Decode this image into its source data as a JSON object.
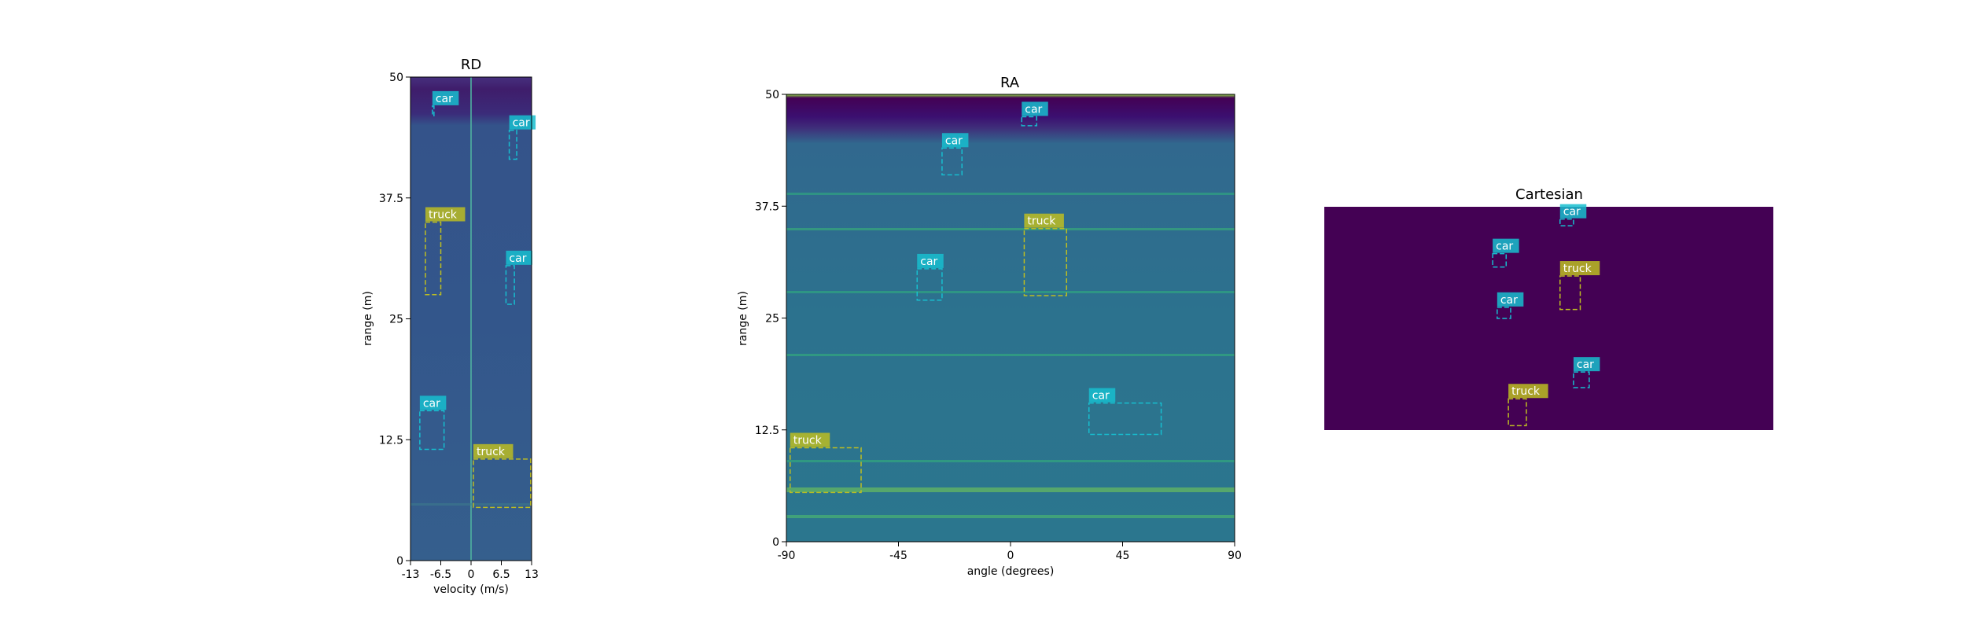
{
  "colors": {
    "car": "#17becf",
    "truck": "#bcbd22",
    "heat_low": "#440154",
    "heat_mid": "#31688e",
    "heat_high": "#b5de2b"
  },
  "chart_data": [
    {
      "type": "heatmap",
      "title": "RD",
      "xlabel": "velocity (m/s)",
      "ylabel": "range (m)",
      "xlim": [
        -13,
        13
      ],
      "ylim": [
        0,
        50
      ],
      "xticks": [
        "-13",
        "-6.5",
        "0",
        "6.5",
        "13"
      ],
      "xtick_values": [
        -13,
        -6.5,
        0,
        6.5,
        13
      ],
      "yticks": [
        "0",
        "12.5",
        "25",
        "37.5",
        "50"
      ],
      "ytick_values": [
        0,
        12.5,
        25,
        37.5,
        50
      ],
      "detections": [
        {
          "label": "car",
          "x": [
            -8.3,
            -8.0
          ],
          "y": [
            46.0,
            47.0
          ]
        },
        {
          "label": "car",
          "x": [
            8.2,
            9.8
          ],
          "y": [
            41.5,
            44.5
          ]
        },
        {
          "label": "truck",
          "x": [
            -9.8,
            -6.5
          ],
          "y": [
            27.5,
            35.0
          ]
        },
        {
          "label": "car",
          "x": [
            7.5,
            9.3
          ],
          "y": [
            26.5,
            30.5
          ]
        },
        {
          "label": "car",
          "x": [
            -11.0,
            -5.8
          ],
          "y": [
            11.5,
            15.5
          ]
        },
        {
          "label": "truck",
          "x": [
            0.5,
            12.8
          ],
          "y": [
            5.5,
            10.5
          ]
        }
      ]
    },
    {
      "type": "heatmap",
      "title": "RA",
      "xlabel": "angle (degrees)",
      "ylabel": "range (m)",
      "xlim": [
        -90,
        90
      ],
      "ylim": [
        0,
        50
      ],
      "xticks": [
        "-90",
        "-45",
        "0",
        "45",
        "90"
      ],
      "xtick_values": [
        -90,
        -45,
        0,
        45,
        90
      ],
      "yticks": [
        "0",
        "12.5",
        "25",
        "37.5",
        "50"
      ],
      "ytick_values": [
        0,
        12.5,
        25,
        37.5,
        50
      ],
      "detections": [
        {
          "label": "car",
          "x": [
            4.5,
            10.5
          ],
          "y": [
            46.5,
            47.5
          ]
        },
        {
          "label": "car",
          "x": [
            -27.5,
            -19.5
          ],
          "y": [
            41.0,
            44.0
          ]
        },
        {
          "label": "truck",
          "x": [
            5.5,
            22.5
          ],
          "y": [
            27.5,
            35.0
          ]
        },
        {
          "label": "car",
          "x": [
            -37.5,
            -27.5
          ],
          "y": [
            27.0,
            30.5
          ]
        },
        {
          "label": "car",
          "x": [
            31.5,
            60.5
          ],
          "y": [
            12.0,
            15.5
          ]
        },
        {
          "label": "truck",
          "x": [
            -88.5,
            -60.0
          ],
          "y": [
            5.5,
            10.5
          ]
        }
      ]
    },
    {
      "type": "heatmap",
      "title": "Cartesian",
      "detections": [
        {
          "label": "car",
          "x": [
            0.525,
            0.555
          ],
          "y": [
            0.915,
            0.945
          ]
        },
        {
          "label": "car",
          "x": [
            0.375,
            0.405
          ],
          "y": [
            0.73,
            0.79
          ]
        },
        {
          "label": "truck",
          "x": [
            0.525,
            0.57
          ],
          "y": [
            0.54,
            0.69
          ]
        },
        {
          "label": "car",
          "x": [
            0.385,
            0.415
          ],
          "y": [
            0.5,
            0.55
          ]
        },
        {
          "label": "car",
          "x": [
            0.555,
            0.59
          ],
          "y": [
            0.19,
            0.26
          ]
        },
        {
          "label": "truck",
          "x": [
            0.41,
            0.45
          ],
          "y": [
            0.02,
            0.14
          ]
        }
      ]
    }
  ]
}
